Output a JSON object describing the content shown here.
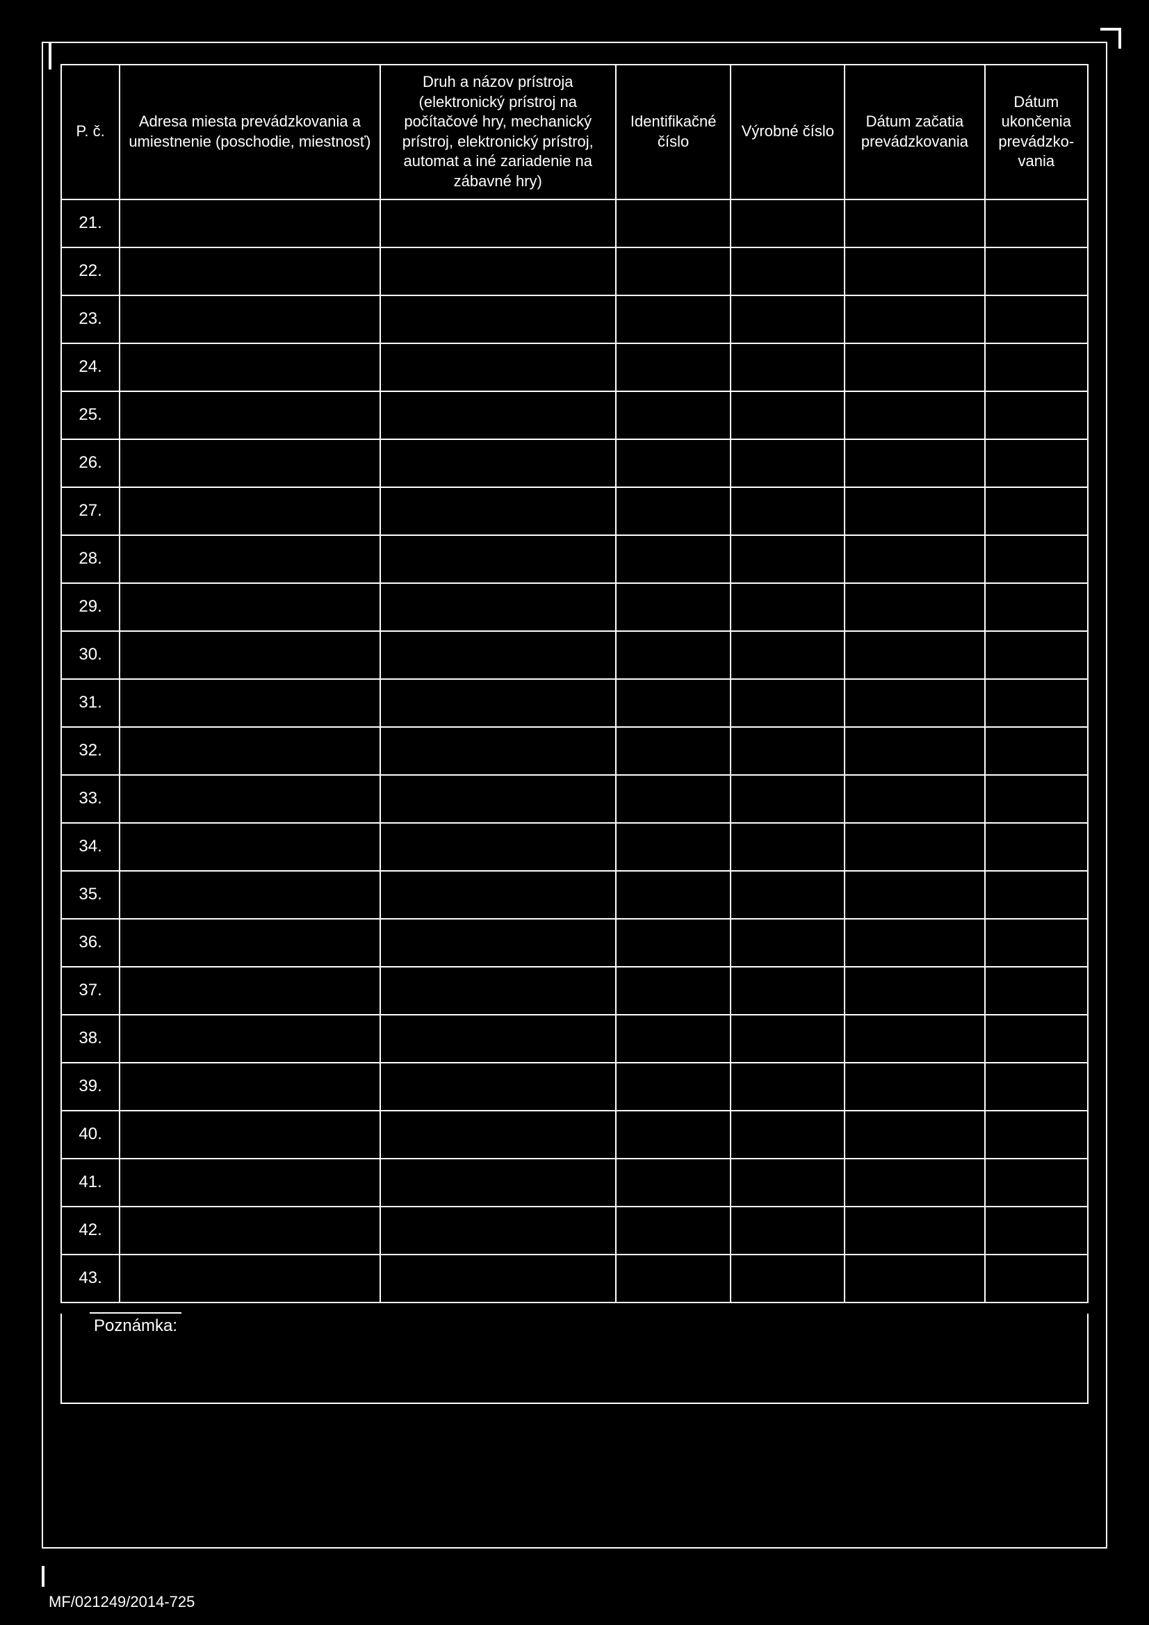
{
  "table": {
    "headers": {
      "pc": "P. č.",
      "adresa": "Adresa miesta prevádzkovania a umiestnenie (poschodie, miestnosť)",
      "druh": "Druh a názov prístroja (elektronický prístroj na počítačové hry, mechanický prístroj, elektronický prístroj, automat a iné zariadenie na zábavné hry)",
      "ident": "Identifikačné číslo",
      "vyrobne": "Výrobné číslo",
      "datum_zacatia": "Dátum začatia prevádzkovania",
      "datum_ukoncenia": "Dátum ukončenia prevádzko-vania"
    },
    "rows": [
      {
        "num": "21."
      },
      {
        "num": "22."
      },
      {
        "num": "23."
      },
      {
        "num": "24."
      },
      {
        "num": "25."
      },
      {
        "num": "26."
      },
      {
        "num": "27."
      },
      {
        "num": "28."
      },
      {
        "num": "29."
      },
      {
        "num": "30."
      },
      {
        "num": "31."
      },
      {
        "num": "32."
      },
      {
        "num": "33."
      },
      {
        "num": "34."
      },
      {
        "num": "35."
      },
      {
        "num": "36."
      },
      {
        "num": "37."
      },
      {
        "num": "38."
      },
      {
        "num": "39."
      },
      {
        "num": "40."
      },
      {
        "num": "41."
      },
      {
        "num": "42."
      },
      {
        "num": "43."
      }
    ]
  },
  "poznamka_label": "Poznámka:",
  "footer": "MF/021249/2014-725",
  "colors": {
    "background": "#000000",
    "border": "#ffffff",
    "text": "#ffffff"
  }
}
